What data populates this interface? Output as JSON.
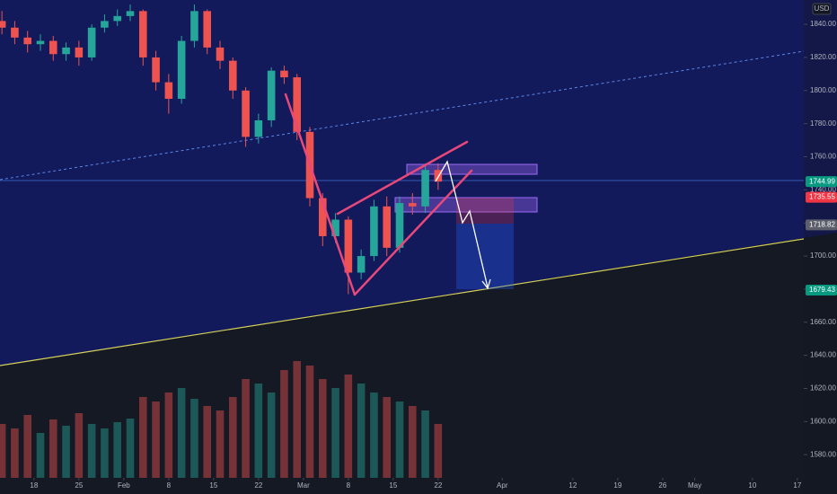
{
  "chart_data": {
    "type": "candlestick",
    "currency": "USD",
    "x": [
      -5,
      -3,
      -1,
      1,
      3,
      5,
      7,
      9,
      11,
      13,
      15,
      17,
      19,
      21,
      23,
      25,
      27,
      29,
      31,
      33,
      35,
      37,
      39,
      41,
      43,
      45,
      47,
      49,
      51,
      53,
      55,
      57,
      59,
      61,
      63
    ],
    "open": [
      1842,
      1838,
      1832,
      1828,
      1830,
      1822,
      1826,
      1820,
      1838,
      1842,
      1845,
      1848,
      1820,
      1805,
      1795,
      1830,
      1848,
      1826,
      1818,
      1800,
      1772,
      1782,
      1812,
      1808,
      1775,
      1735,
      1712,
      1722,
      1690,
      1700,
      1730,
      1705,
      1732,
      1730,
      1752
    ],
    "high": [
      1848,
      1842,
      1836,
      1834,
      1833,
      1829,
      1830,
      1840,
      1846,
      1849,
      1852,
      1849,
      1824,
      1810,
      1833,
      1852,
      1849,
      1830,
      1820,
      1802,
      1786,
      1814,
      1815,
      1810,
      1778,
      1738,
      1726,
      1724,
      1704,
      1734,
      1736,
      1736,
      1738,
      1756,
      1756
    ],
    "low": [
      1834,
      1828,
      1823,
      1824,
      1818,
      1818,
      1815,
      1818,
      1835,
      1839,
      1842,
      1815,
      1800,
      1786,
      1792,
      1826,
      1822,
      1813,
      1795,
      1766,
      1768,
      1778,
      1804,
      1770,
      1730,
      1706,
      1708,
      1677,
      1686,
      1697,
      1700,
      1702,
      1725,
      1726,
      1740
    ],
    "close": [
      1838,
      1832,
      1828,
      1830,
      1822,
      1826,
      1820,
      1838,
      1842,
      1845,
      1848,
      1820,
      1805,
      1795,
      1830,
      1848,
      1826,
      1818,
      1800,
      1772,
      1782,
      1812,
      1808,
      1775,
      1735,
      1712,
      1722,
      1690,
      1700,
      1730,
      1705,
      1732,
      1730,
      1752,
      1744.99
    ],
    "volume": [
      60,
      55,
      70,
      50,
      65,
      58,
      72,
      60,
      55,
      62,
      66,
      90,
      85,
      95,
      100,
      88,
      80,
      75,
      90,
      110,
      105,
      95,
      120,
      130,
      125,
      110,
      100,
      115,
      105,
      95,
      90,
      85,
      80,
      75,
      60
    ],
    "up_color": "#26a69a",
    "down_color": "#ef5350",
    "xlim": [
      -5.3,
      120
    ],
    "ylim": [
      1566,
      1854.7
    ],
    "xticks": [
      {
        "value": 0,
        "label": "18"
      },
      {
        "value": 7,
        "label": "25"
      },
      {
        "value": 14,
        "label": "Feb"
      },
      {
        "value": 21,
        "label": "8"
      },
      {
        "value": 28,
        "label": "15"
      },
      {
        "value": 35,
        "label": "22"
      },
      {
        "value": 42,
        "label": "Mar"
      },
      {
        "value": 49,
        "label": "8"
      },
      {
        "value": 56,
        "label": "15"
      },
      {
        "value": 63,
        "label": "22"
      },
      {
        "value": 73,
        "label": "Apr"
      },
      {
        "value": 84,
        "label": "12"
      },
      {
        "value": 91,
        "label": "19"
      },
      {
        "value": 98,
        "label": "26"
      },
      {
        "value": 103,
        "label": "May"
      },
      {
        "value": 112,
        "label": "10"
      },
      {
        "value": 119,
        "label": "17"
      }
    ],
    "yticks": [
      {
        "value": 1580,
        "label": "1580.00"
      },
      {
        "value": 1600,
        "label": "1600.00"
      },
      {
        "value": 1620,
        "label": "1620.00"
      },
      {
        "value": 1640,
        "label": "1640.00"
      },
      {
        "value": 1660,
        "label": "1660.00"
      },
      {
        "value": 1680,
        "label": "1680.00"
      },
      {
        "value": 1700,
        "label": "1700.00"
      },
      {
        "value": 1720,
        "label": "1720.00"
      },
      {
        "value": 1740,
        "label": "1740.00"
      },
      {
        "value": 1760,
        "label": "1760.00"
      },
      {
        "value": 1780,
        "label": "1780.00"
      },
      {
        "value": 1800,
        "label": "1800.00"
      },
      {
        "value": 1820,
        "label": "1820.00"
      },
      {
        "value": 1840,
        "label": "1840.00"
      }
    ],
    "price_labels": [
      {
        "value": 1744.99,
        "color": "#089981"
      },
      {
        "value": 1735.55,
        "color": "#f23645"
      },
      {
        "value": 1718.82,
        "color": "#5d606b"
      },
      {
        "value": 1679.43,
        "color": "#089981"
      }
    ]
  }
}
